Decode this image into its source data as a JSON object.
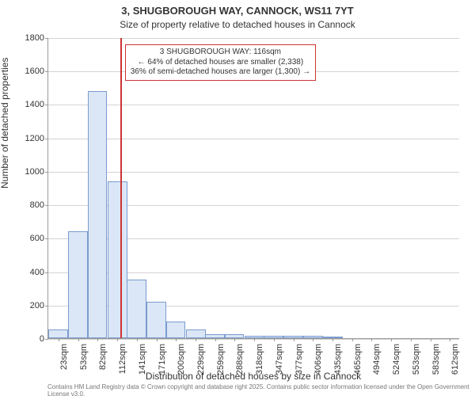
{
  "chart": {
    "type": "histogram",
    "title_line1": "3, SHUGBOROUGH WAY, CANNOCK, WS11 7YT",
    "title_line2": "Size of property relative to detached houses in Cannock",
    "title_fontsize": 13,
    "subtitle_fontsize": 12,
    "xlabel": "Distribution of detached houses by size in Cannock",
    "ylabel": "Number of detached properties",
    "axis_label_fontsize": 12,
    "tick_fontsize": 11,
    "attribution": "Contains HM Land Registry data © Crown copyright and database right 2025. Contains public sector information licensed under the Open Government License v3.0.",
    "attribution_fontsize": 8,
    "background_color": "#ffffff",
    "grid_color": "#d3d3d3",
    "axis_color": "#9a9a9a",
    "text_color": "#333333",
    "bar_fill": "#dbe6f6",
    "bar_stroke": "#7a9ccf",
    "reference_line_color": "#cc3333",
    "annotation_border": "#cc3333",
    "reference_value_sqm": 116,
    "x_tick_labels": [
      "23sqm",
      "53sqm",
      "82sqm",
      "112sqm",
      "141sqm",
      "171sqm",
      "200sqm",
      "229sqm",
      "259sqm",
      "288sqm",
      "318sqm",
      "347sqm",
      "377sqm",
      "406sqm",
      "435sqm",
      "465sqm",
      "494sqm",
      "524sqm",
      "553sqm",
      "583sqm",
      "612sqm"
    ],
    "x_tick_values": [
      23,
      53,
      82,
      112,
      141,
      171,
      200,
      229,
      259,
      288,
      318,
      347,
      377,
      406,
      435,
      465,
      494,
      524,
      553,
      583,
      612
    ],
    "y_ticks": [
      0,
      200,
      400,
      600,
      800,
      1000,
      1200,
      1400,
      1600,
      1800
    ],
    "ylim": [
      0,
      1800
    ],
    "xlim": [
      8,
      627
    ],
    "bar_left_edges_sqm": [
      8,
      38,
      67,
      97,
      126,
      156,
      185,
      215,
      244,
      273,
      303,
      332,
      362,
      391,
      421,
      450,
      479,
      509,
      538,
      568,
      597
    ],
    "bar_width_sqm": 29.5,
    "bar_heights": [
      50,
      640,
      1480,
      940,
      350,
      220,
      100,
      50,
      25,
      25,
      15,
      15,
      15,
      15,
      5,
      0,
      0,
      0,
      0,
      0,
      0
    ],
    "annotation": {
      "line1": "3 SHUGBOROUGH WAY: 116sqm",
      "line2": "← 64% of detached houses are smaller (2,338)",
      "line3": "36% of semi-detached houses are larger (1,300) →",
      "fontsize": 10
    }
  }
}
